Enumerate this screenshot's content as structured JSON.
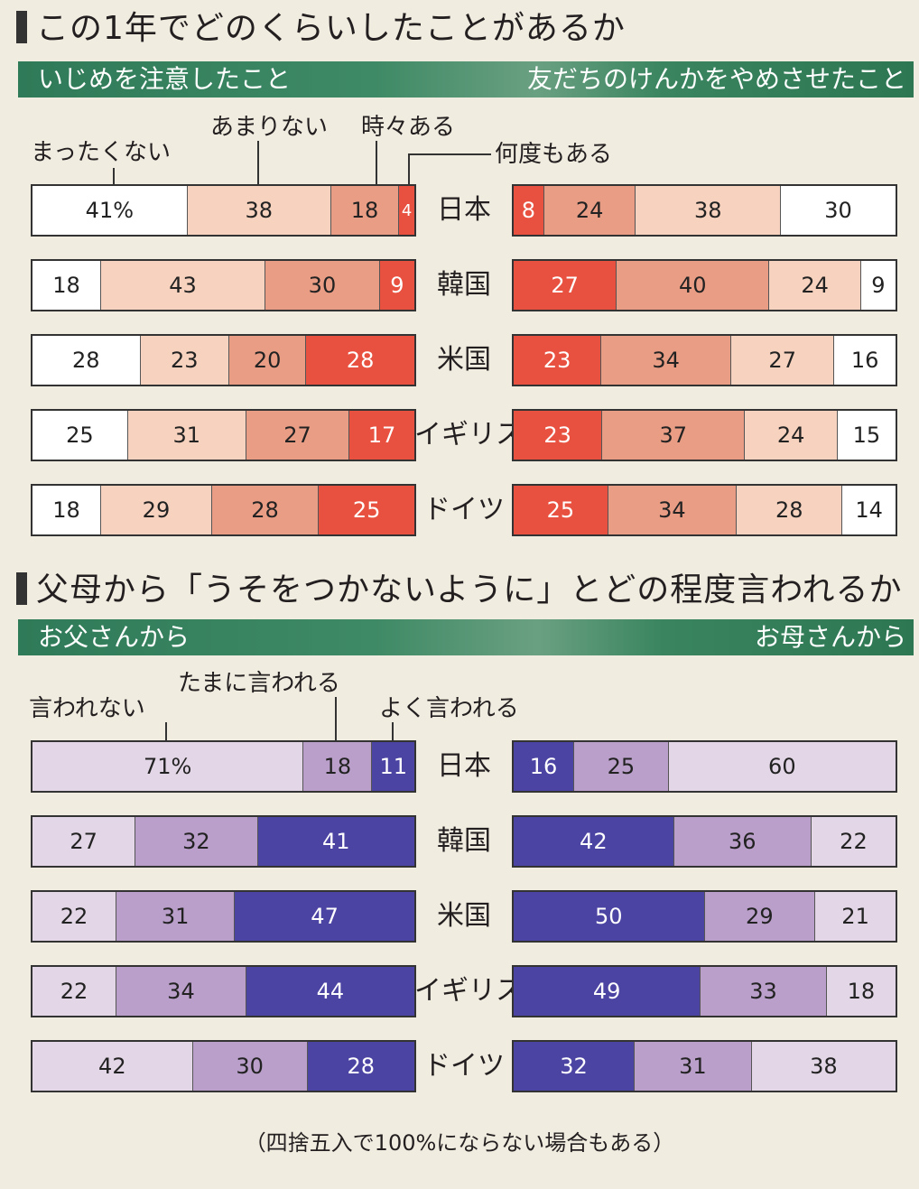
{
  "section1": {
    "title": "この1年でどのくらいしたことがあるか",
    "left_header": "いじめを注意したこと",
    "right_header": "友だちのけんかをやめさせたこと",
    "categories": [
      "まったくない",
      "あまりない",
      "時々ある",
      "何度もある"
    ],
    "colors": [
      "#ffffff",
      "#f7d3bf",
      "#e99d85",
      "#e8513f"
    ]
  },
  "section2": {
    "title": "父母から「うそをつかないように」とどの程度言われるか",
    "left_header": "お父さんから",
    "right_header": "お母さんから",
    "categories": [
      "言われない",
      "たまに言われる",
      "よく言われる"
    ],
    "colors": [
      "#e3d6e6",
      "#b99fc9",
      "#4b44a3"
    ]
  },
  "countries": [
    "日本",
    "韓国",
    "米国",
    "イギリス",
    "ドイツ"
  ],
  "note": "（四捨五入で100%にならない場合もある）",
  "chart_data": [
    {
      "type": "bar",
      "title": "いじめを注意したこと",
      "orientation": "horizontal-stacked",
      "categories": [
        "日本",
        "韓国",
        "米国",
        "イギリス",
        "ドイツ"
      ],
      "series": [
        {
          "name": "まったくない",
          "values": [
            41,
            18,
            28,
            25,
            18
          ]
        },
        {
          "name": "あまりない",
          "values": [
            38,
            43,
            23,
            31,
            29
          ]
        },
        {
          "name": "時々ある",
          "values": [
            18,
            30,
            20,
            27,
            28
          ]
        },
        {
          "name": "何度もある",
          "values": [
            4,
            9,
            28,
            17,
            25
          ]
        }
      ],
      "first_label_suffix": "%"
    },
    {
      "type": "bar",
      "title": "友だちのけんかをやめさせたこと",
      "orientation": "horizontal-stacked",
      "categories": [
        "日本",
        "韓国",
        "米国",
        "イギリス",
        "ドイツ"
      ],
      "series": [
        {
          "name": "何度もある",
          "values": [
            8,
            27,
            23,
            23,
            25
          ]
        },
        {
          "name": "時々ある",
          "values": [
            24,
            40,
            34,
            37,
            34
          ]
        },
        {
          "name": "あまりない",
          "values": [
            38,
            24,
            27,
            24,
            28
          ]
        },
        {
          "name": "まったくない",
          "values": [
            30,
            9,
            16,
            15,
            14
          ]
        }
      ]
    },
    {
      "type": "bar",
      "title": "お父さんから",
      "orientation": "horizontal-stacked",
      "categories": [
        "日本",
        "韓国",
        "米国",
        "イギリス",
        "ドイツ"
      ],
      "series": [
        {
          "name": "言われない",
          "values": [
            71,
            27,
            22,
            22,
            42
          ]
        },
        {
          "name": "たまに言われる",
          "values": [
            18,
            32,
            31,
            34,
            30
          ]
        },
        {
          "name": "よく言われる",
          "values": [
            11,
            41,
            47,
            44,
            28
          ]
        }
      ],
      "first_label_suffix": "%"
    },
    {
      "type": "bar",
      "title": "お母さんから",
      "orientation": "horizontal-stacked",
      "categories": [
        "日本",
        "韓国",
        "米国",
        "イギリス",
        "ドイツ"
      ],
      "series": [
        {
          "name": "よく言われる",
          "values": [
            16,
            42,
            50,
            49,
            32
          ]
        },
        {
          "name": "たまに言われる",
          "values": [
            25,
            36,
            29,
            33,
            31
          ]
        },
        {
          "name": "言われない",
          "values": [
            60,
            22,
            21,
            18,
            38
          ]
        }
      ]
    }
  ]
}
